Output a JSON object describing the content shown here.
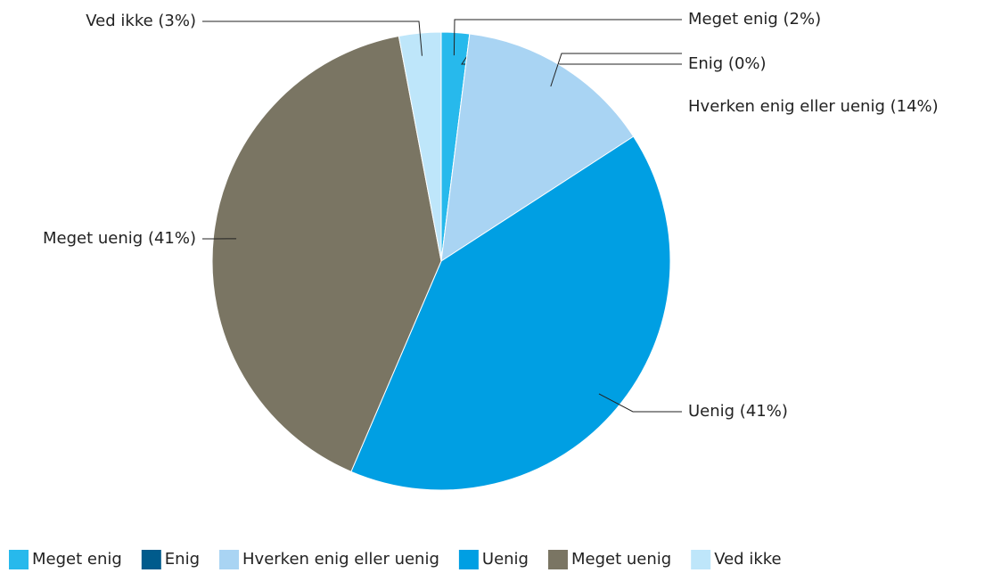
{
  "chart_data": {
    "type": "pie",
    "categories": [
      "Meget enig",
      "Enig",
      "Hverken enig eller uenig",
      "Uenig",
      "Meget uenig",
      "Ved ikke"
    ],
    "values": [
      2,
      0,
      14,
      41,
      41,
      3
    ],
    "value_labels": [
      "Meget enig (2%)",
      "Enig (0%)",
      "Hverken enig eller uenig (14%)",
      "Uenig (41%)",
      "Meget uenig (41%)",
      "Ved ikke (3%)"
    ],
    "colors": [
      "#27b9ec",
      "#005b8c",
      "#a9d4f3",
      "#009fe3",
      "#7a7563",
      "#bee6fa"
    ],
    "legend": "bottom"
  }
}
